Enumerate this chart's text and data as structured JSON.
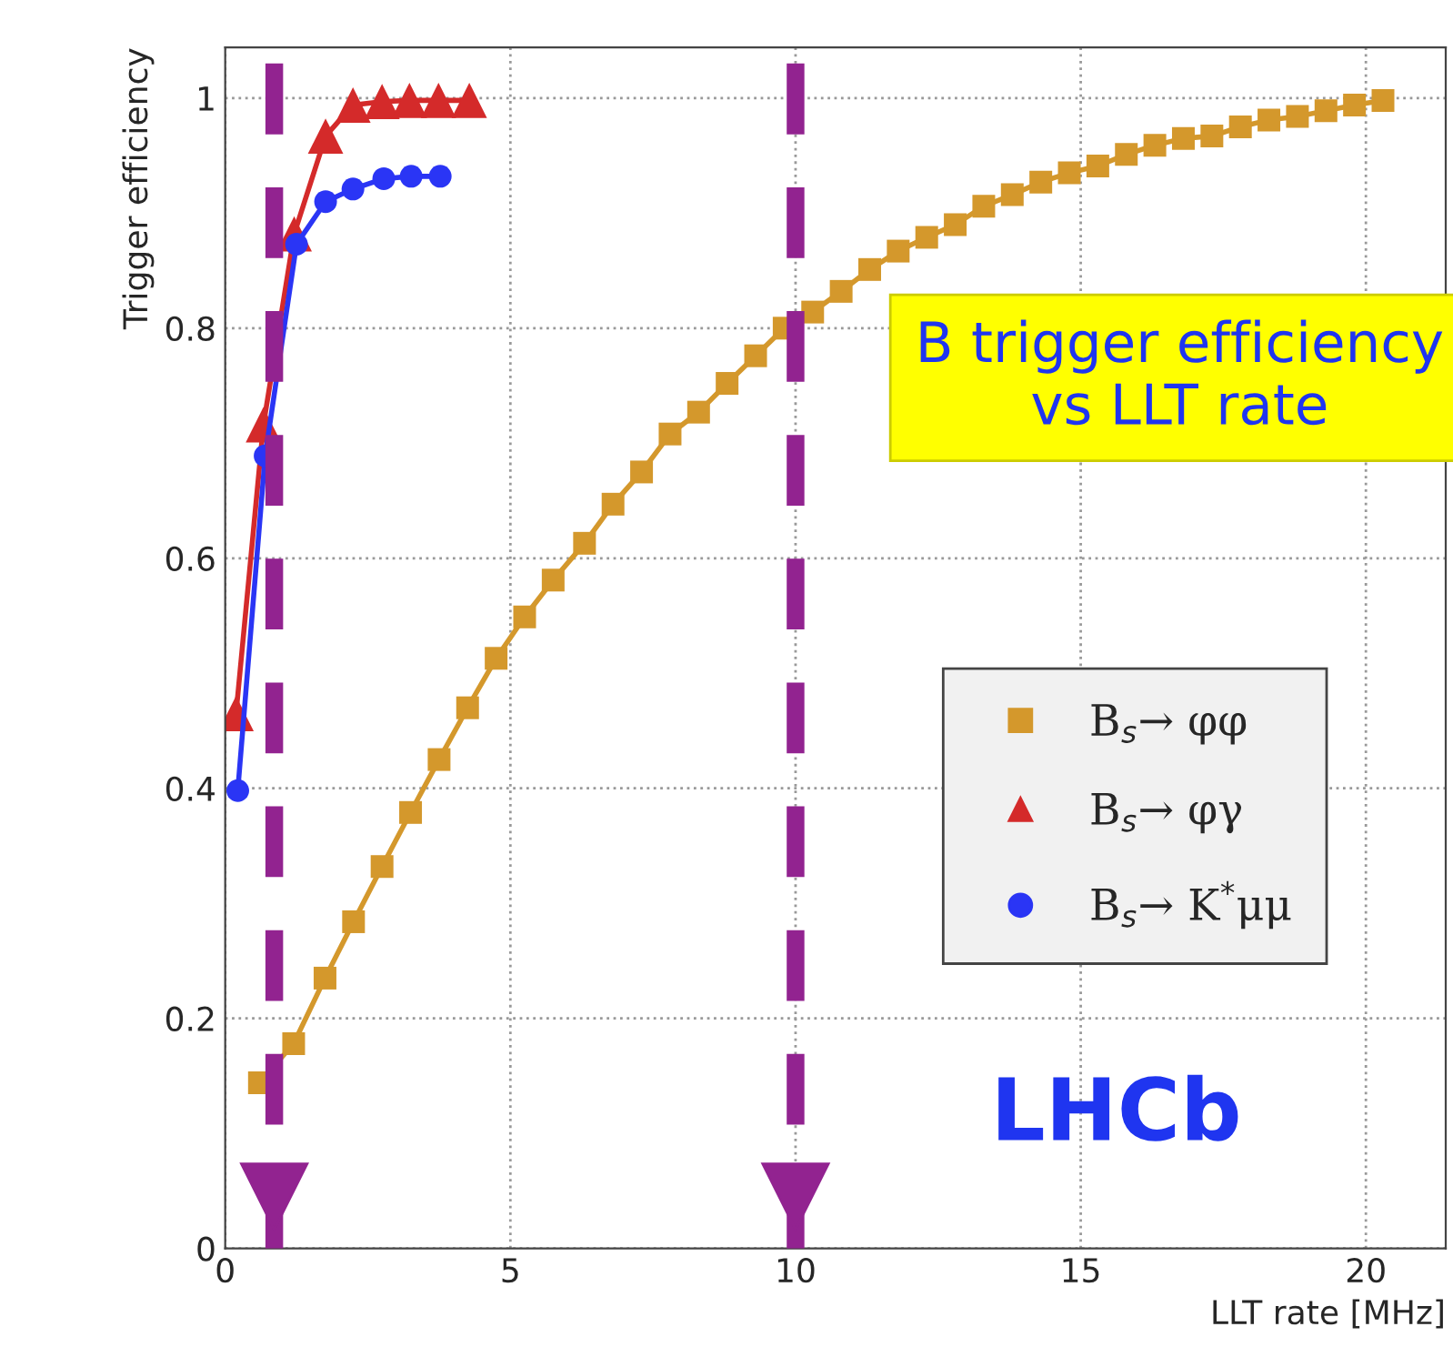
{
  "chart_data": {
    "type": "line",
    "xlabel": "LLT rate [MHz]",
    "ylabel": "Trigger efficiency",
    "xlim": [
      0,
      21.4
    ],
    "ylim": [
      0,
      1.044
    ],
    "xticks": [
      0,
      5,
      10,
      15,
      20
    ],
    "yticks": [
      0,
      0.2,
      0.4,
      0.6,
      0.8,
      1
    ],
    "grid": true,
    "legend": "right",
    "line_style": "solid",
    "series": [
      {
        "name": "B$_{s}$→ φφ",
        "color": "#d4982c",
        "marker": "square",
        "x": [
          0.6,
          1.2,
          1.75,
          2.25,
          2.75,
          3.25,
          3.75,
          4.25,
          4.75,
          5.25,
          5.75,
          6.3,
          6.8,
          7.3,
          7.8,
          8.3,
          8.8,
          9.3,
          9.8,
          10.3,
          10.8,
          11.3,
          11.8,
          12.3,
          12.8,
          13.3,
          13.8,
          14.3,
          14.8,
          15.3,
          15.8,
          16.3,
          16.8,
          17.3,
          17.8,
          18.3,
          18.8,
          19.3,
          19.8,
          20.3
        ],
        "values": [
          0.144,
          0.178,
          0.235,
          0.284,
          0.332,
          0.379,
          0.425,
          0.47,
          0.513,
          0.549,
          0.581,
          0.613,
          0.647,
          0.675,
          0.708,
          0.727,
          0.752,
          0.776,
          0.8,
          0.814,
          0.832,
          0.851,
          0.867,
          0.879,
          0.89,
          0.906,
          0.916,
          0.927,
          0.935,
          0.941,
          0.951,
          0.959,
          0.965,
          0.967,
          0.975,
          0.981,
          0.984,
          0.989,
          0.994,
          0.998
        ]
      },
      {
        "name": "B$_{s}$→ φγ",
        "color": "#d42a2a",
        "marker": "triangle",
        "x": [
          0.19,
          0.67,
          1.21,
          1.76,
          2.24,
          2.75,
          3.23,
          3.74,
          4.28
        ],
        "values": [
          0.465,
          0.716,
          0.882,
          0.967,
          0.994,
          0.997,
          0.998,
          0.998,
          0.998
        ]
      },
      {
        "name": "B$_{s}$→ K$^{*}$μμ",
        "color": "#2a35f5",
        "marker": "circle",
        "x": [
          0.22,
          0.7,
          1.25,
          1.76,
          2.24,
          2.78,
          3.26,
          3.77
        ],
        "values": [
          0.398,
          0.689,
          0.873,
          0.91,
          0.921,
          0.93,
          0.932,
          0.932
        ]
      }
    ],
    "ref_lines": [
      {
        "axis": "x",
        "value": 0.86,
        "color": "#922390",
        "line_style": "dashed"
      },
      {
        "axis": "x",
        "value": 10,
        "color": "#922390",
        "line_style": "dashed"
      }
    ],
    "annotations": [
      "B trigger efficiency vs LLT rate",
      "LHCb"
    ]
  }
}
